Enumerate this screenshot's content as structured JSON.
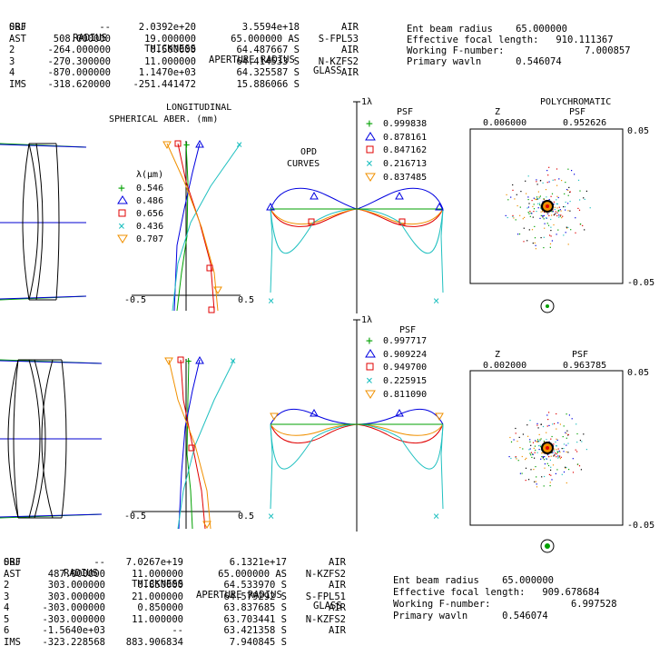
{
  "upper": {
    "headers": [
      "SRF",
      "RADIUS",
      "THICKNESS",
      "APERTURE RADIUS",
      "GLASS"
    ],
    "rows": [
      [
        "OBJ",
        "--",
        "2.0392e+20",
        "3.5594e+18",
        "AIR"
      ],
      [
        "AST",
        "508.000000",
        "19.000000",
        "65.000000 AS",
        "S-FPL53"
      ],
      [
        "2",
        "-264.000000",
        "0.500000",
        "64.487667 S",
        "AIR"
      ],
      [
        "3",
        "-270.300000",
        "11.000000",
        "64.414533 S",
        "N-KZFS2"
      ],
      [
        "4",
        "-870.000000",
        "1.1470e+03",
        "64.325587 S",
        "AIR"
      ],
      [
        "IMS",
        "-318.620000",
        "-251.441472",
        "15.886066 S",
        ""
      ]
    ],
    "summary": [
      "Ent beam radius    65.000000",
      "Effective focal length:   910.111367",
      "Working F-number:              7.000857",
      "Primary wavln      0.546074"
    ],
    "psf": {
      "z_label": "Z",
      "z": "0.006000",
      "psf_label": "PSF",
      "psf": "0.952626",
      "title": "POLYCHROMATIC",
      "scale_top": "0.05",
      "scale_bottom": "-0.05"
    },
    "opd_psf_label": "PSF",
    "opd_values": [
      "0.999838",
      "0.878161",
      "0.847162",
      "0.216713",
      "0.837485"
    ],
    "axis_min": "-0.5",
    "axis_max": "0.5",
    "lambda_tick": "1λ"
  },
  "lower": {
    "headers": [
      "SRF",
      "RADIUS",
      "THICKNESS",
      "APERTURE RADIUS",
      "GLASS"
    ],
    "rows": [
      [
        "OBJ",
        "--",
        "7.0267e+19",
        "6.1321e+17",
        "AIR"
      ],
      [
        "AST",
        "487.000000",
        "11.000000",
        "65.000000 AS",
        "N-KZFS2"
      ],
      [
        "2",
        "303.000000",
        "0.850000",
        "64.533970 S",
        "AIR"
      ],
      [
        "3",
        "303.000000",
        "21.000000",
        "64.579292 S",
        "S-FPL51"
      ],
      [
        "4",
        "-303.000000",
        "0.850000",
        "63.837685 S",
        "AIR"
      ],
      [
        "5",
        "-303.000000",
        "11.000000",
        "63.703441 S",
        "N-KZFS2"
      ],
      [
        "6",
        "-1.5640e+03",
        "--",
        "63.421358 S",
        "AIR"
      ],
      [
        "IMS",
        "-323.228568",
        "883.906834",
        "7.940845 S",
        ""
      ]
    ],
    "summary": [
      "Ent beam radius    65.000000",
      "Effective focal length:   909.678684",
      "Working F-number:              6.997528",
      "Primary wavln      0.546074"
    ],
    "psf": {
      "z_label": "Z",
      "z": "0.002000",
      "psf_label": "PSF",
      "psf": "0.963785",
      "scale_top": "0.05",
      "scale_bottom": "-0.05"
    },
    "opd_psf_label": "PSF",
    "opd_values": [
      "0.997717",
      "0.909224",
      "0.949700",
      "0.225915",
      "0.811090"
    ],
    "axis_min": "-0.5",
    "axis_max": "0.5",
    "lambda_tick": "1λ"
  },
  "spherical": {
    "title1": "LONGITUDINAL",
    "title2": "SPHERICAL ABER. (mm)",
    "legend_title": "λ(μm)"
  },
  "opd_title": {
    "line1": "OPD",
    "line2": "CURVES"
  },
  "wavelengths": [
    {
      "value": "0.546",
      "color": "#00a000",
      "symbol": "+"
    },
    {
      "value": "0.486",
      "color": "#0000e0",
      "symbol": "triangle"
    },
    {
      "value": "0.656",
      "color": "#e00000",
      "symbol": "square"
    },
    {
      "value": "0.436",
      "color": "#20c0c0",
      "symbol": "x"
    },
    {
      "value": "0.707",
      "color": "#f09000",
      "symbol": "triangle-down"
    }
  ]
}
